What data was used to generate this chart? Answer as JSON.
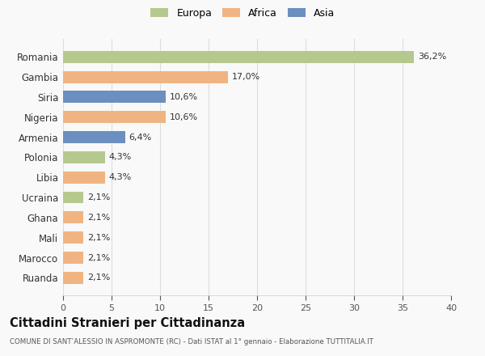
{
  "categories": [
    "Ruanda",
    "Marocco",
    "Mali",
    "Ghana",
    "Ucraina",
    "Libia",
    "Polonia",
    "Armenia",
    "Nigeria",
    "Siria",
    "Gambia",
    "Romania"
  ],
  "values": [
    2.1,
    2.1,
    2.1,
    2.1,
    2.1,
    4.3,
    4.3,
    6.4,
    10.6,
    10.6,
    17.0,
    36.2
  ],
  "labels": [
    "2,1%",
    "2,1%",
    "2,1%",
    "2,1%",
    "2,1%",
    "4,3%",
    "4,3%",
    "6,4%",
    "10,6%",
    "10,6%",
    "17,0%",
    "36,2%"
  ],
  "colors": [
    "#f0b482",
    "#f0b482",
    "#f0b482",
    "#f0b482",
    "#b5c98e",
    "#f0b482",
    "#b5c98e",
    "#6b8fbe",
    "#f0b482",
    "#6b8fbe",
    "#f0b482",
    "#b5c98e"
  ],
  "legend": [
    {
      "label": "Europa",
      "color": "#b5c98e"
    },
    {
      "label": "Africa",
      "color": "#f0b482"
    },
    {
      "label": "Asia",
      "color": "#6b8fbe"
    }
  ],
  "xlim": [
    0,
    40
  ],
  "xticks": [
    0,
    5,
    10,
    15,
    20,
    25,
    30,
    35,
    40
  ],
  "title": "Cittadini Stranieri per Cittadinanza",
  "subtitle": "COMUNE DI SANT’ALESSIO IN ASPROMONTE (RC) - Dati ISTAT al 1° gennaio - Elaborazione TUTTITALIA.IT",
  "bg_color": "#f9f9f9",
  "grid_color": "#dddddd"
}
